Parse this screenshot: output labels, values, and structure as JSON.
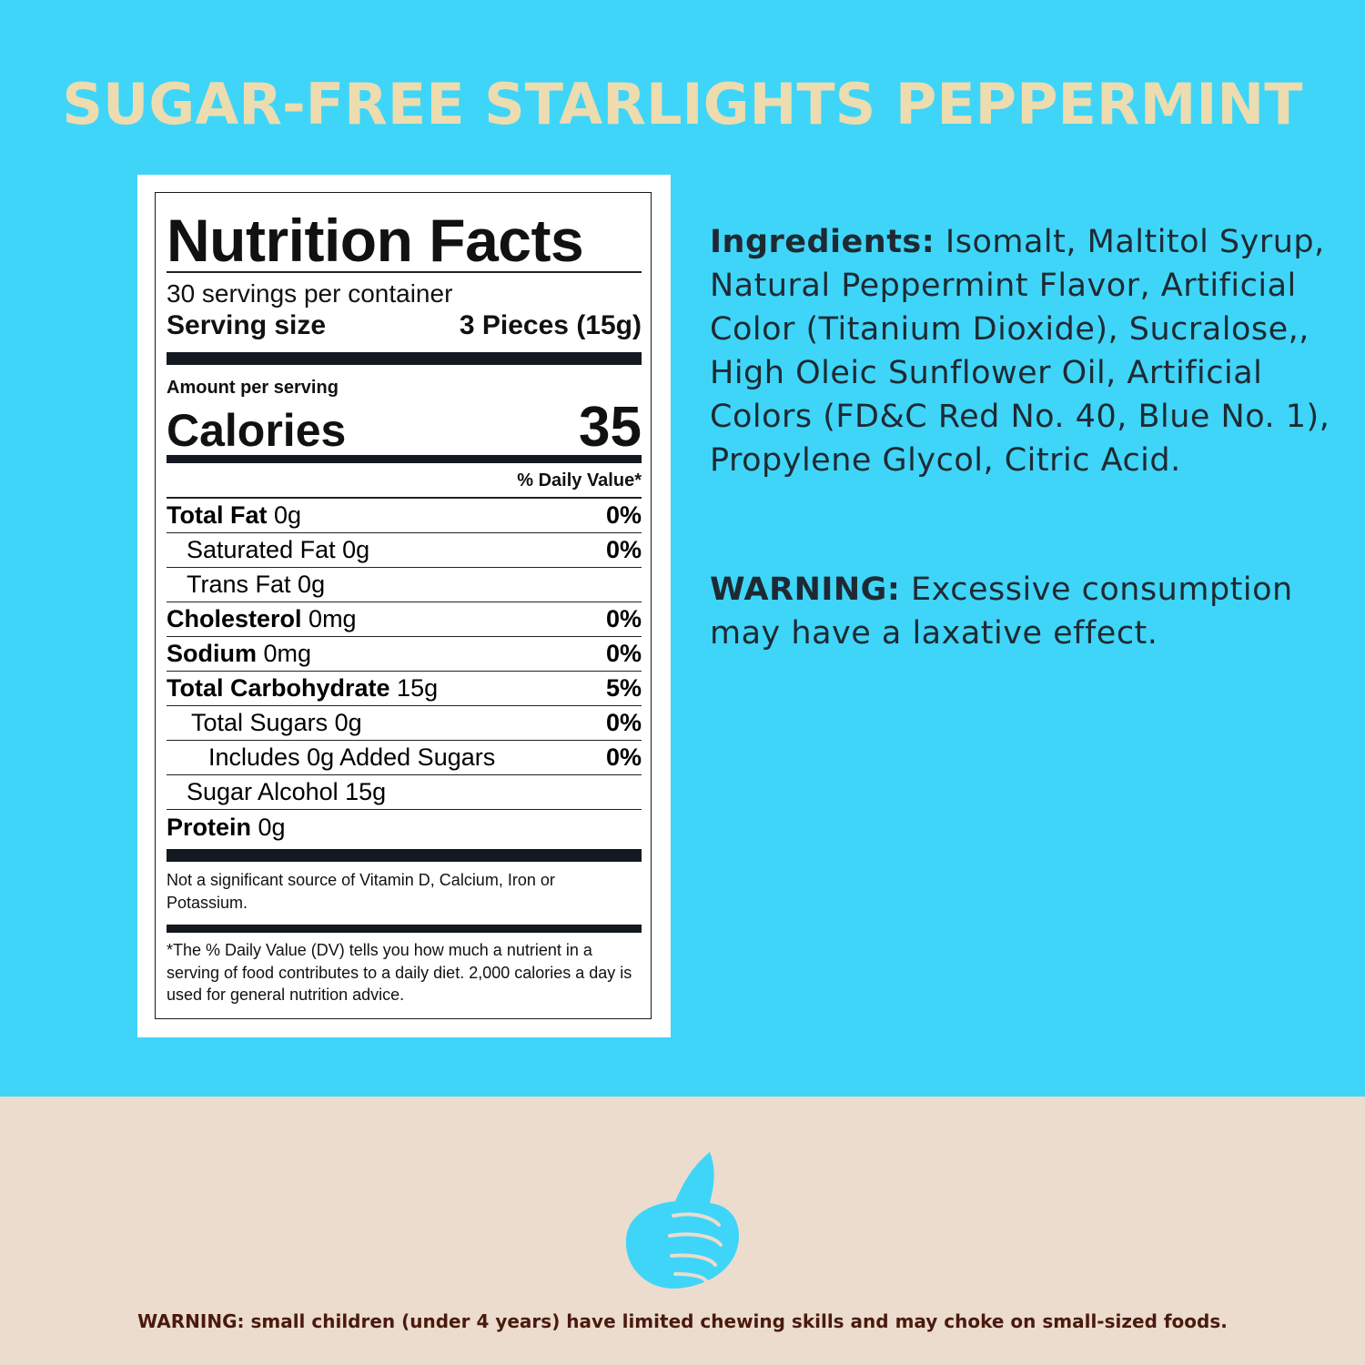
{
  "title": "SUGAR-FREE STARLIGHTS PEPPERMINT",
  "nutrition": {
    "heading": "Nutrition Facts",
    "servings": "30 servings per container",
    "serving_size_label": "Serving size",
    "serving_size": "3 Pieces (15g)",
    "amount_per_serving": "Amount per serving",
    "calories_label": "Calories",
    "calories": 35,
    "dv_header": "% Daily Value*",
    "rows": [
      {
        "name": "Total Fat",
        "amount": "0g",
        "dv": "0%"
      },
      {
        "name": "Saturated Fat",
        "amount": "0g",
        "dv": "0%"
      },
      {
        "name": "Trans Fat",
        "amount": "0g"
      },
      {
        "name": "Cholesterol",
        "amount": "0mg",
        "dv": "0%"
      },
      {
        "name": "Sodium",
        "amount": "0mg",
        "dv": "0%"
      },
      {
        "name": "Total Carbohydrate",
        "amount": "15g",
        "dv": "5%"
      },
      {
        "name": "Total Sugars",
        "amount": "0g",
        "dv": "0%"
      },
      {
        "name": "Includes 0g Added Sugars",
        "dv": "0%"
      },
      {
        "name": "Sugar Alcohol",
        "amount": "15g"
      },
      {
        "name": "Protein",
        "amount": "0g"
      }
    ],
    "note": "Not a significant source of Vitamin D, Calcium, Iron or Potassium.",
    "footnote": "*The % Daily Value (DV) tells you how much a nutrient in a serving of food contributes to a daily diet. 2,000 calories a day is used for general nutrition advice."
  },
  "ingredients": {
    "label": "Ingredients:",
    "text": "Isomalt, Maltitol Syrup, Natural Peppermint Flavor, Artificial Color (Titanium Dioxide), Sucralose,, High Oleic Sunflower Oil, Artificial Colors (FD&C Red No. 40, Blue No. 1), Propylene Glycol, Citric Acid."
  },
  "warning": {
    "label": "WARNING:",
    "text": "Excessive consumption may have a laxative effect."
  },
  "choking_warning": "WARNING: small children (under 4 years) have limited chewing skills and may choke on small-sized foods."
}
